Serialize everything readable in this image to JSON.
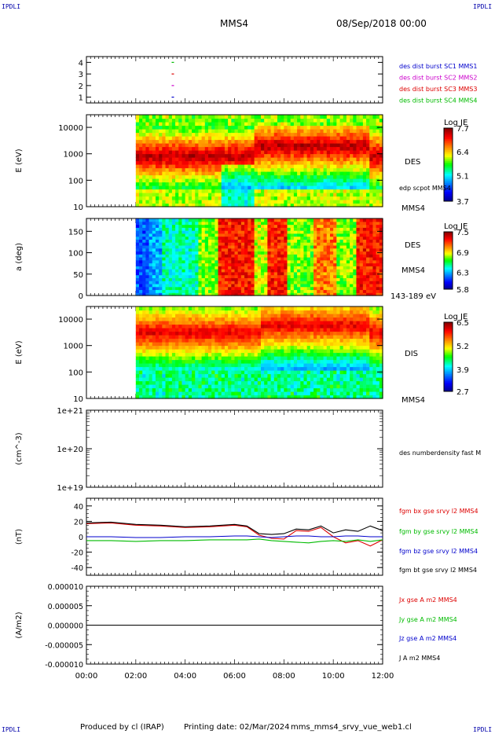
{
  "header": {
    "corner_tl": "IPDLI",
    "corner_tr": "IPDLI",
    "corner_bl": "IPDLI",
    "corner_br": "IPDLI",
    "spacecraft": "MMS4",
    "datetime": "08/Sep/2018 00:00"
  },
  "footer": {
    "produced_by": "Produced by cl (IRAP)",
    "printing_date": "Printing date: 02/Mar/2024",
    "script": "mms_mms4_srvy_vue_web1.cl"
  },
  "colors": {
    "blue": "#0000cc",
    "magenta": "#cc00cc",
    "red": "#dd0000",
    "green": "#00bb00",
    "black": "#000000"
  },
  "time_axis": {
    "ticks": [
      "00:00",
      "02:00",
      "04:00",
      "06:00",
      "08:00",
      "10:00",
      "12:00"
    ],
    "range_hours": [
      0,
      12
    ]
  },
  "chart_data": [
    {
      "type": "scatter",
      "panel": "burst",
      "ylim": [
        0.5,
        4.5
      ],
      "yticks": [
        "1",
        "2",
        "3",
        "4"
      ],
      "series": [
        {
          "name": "des dist burst SC1 MMS1",
          "color": "#0000cc",
          "x_hours": [
            3.5
          ],
          "y": [
            1
          ]
        },
        {
          "name": "des dist burst SC2 MMS2",
          "color": "#cc00cc",
          "x_hours": [
            3.5
          ],
          "y": [
            2
          ]
        },
        {
          "name": "des dist burst SC3 MMS3",
          "color": "#dd0000",
          "x_hours": [
            3.5
          ],
          "y": [
            3
          ]
        },
        {
          "name": "des dist burst SC4 MMS4",
          "color": "#00bb00",
          "x_hours": [
            3.5
          ],
          "y": [
            4
          ]
        }
      ]
    },
    {
      "type": "heatmap",
      "panel": "des_energy",
      "ylabel": "E (eV)",
      "yscale": "log",
      "ylim": [
        10,
        30000
      ],
      "yticks": [
        "10",
        "100",
        "1000",
        "10000"
      ],
      "data_start_hours": 2.0,
      "right_labels": [
        "DES",
        "edp scpot MMS4",
        "MMS4"
      ],
      "colorbar": {
        "title": "Log JE",
        "ticks": [
          "7.7",
          "6.4",
          "5.1",
          "3.7"
        ],
        "range": [
          3.7,
          7.7
        ]
      }
    },
    {
      "type": "heatmap",
      "panel": "des_pitch",
      "ylabel": "a (deg)",
      "ylim": [
        0,
        180
      ],
      "yticks": [
        "0",
        "50",
        "100",
        "150"
      ],
      "data_start_hours": 2.0,
      "right_labels": [
        "DES",
        "MMS4",
        "143-189 eV"
      ],
      "colorbar": {
        "title": "Log JE",
        "ticks": [
          "7.5",
          "6.9",
          "6.3",
          "5.8"
        ],
        "range": [
          5.8,
          7.5
        ]
      }
    },
    {
      "type": "heatmap",
      "panel": "dis_energy",
      "ylabel": "E (eV)",
      "yscale": "log",
      "ylim": [
        10,
        30000
      ],
      "yticks": [
        "10",
        "100",
        "1000",
        "10000"
      ],
      "data_start_hours": 2.0,
      "right_labels": [
        "DIS",
        "MMS4"
      ],
      "colorbar": {
        "title": "Log JE",
        "ticks": [
          "6.5",
          "5.2",
          "3.9",
          "2.7"
        ],
        "range": [
          2.7,
          6.5
        ]
      }
    },
    {
      "type": "line",
      "panel": "density",
      "ylabel": "(cm^-3)",
      "yscale": "log",
      "yticks": [
        "1e+19",
        "1e+20",
        "1e+21"
      ],
      "series": [
        {
          "name": "des numberdensity fast M",
          "color": "#000000",
          "x_hours": [],
          "y": []
        }
      ]
    },
    {
      "type": "line",
      "panel": "fgm",
      "ylabel": "(nT)",
      "ylim": [
        -50,
        50
      ],
      "yticks": [
        "-40",
        "-20",
        "0",
        "20",
        "40"
      ],
      "series": [
        {
          "name": "fgm bx gse srvy l2 MMS4",
          "color": "#dd0000",
          "x_hours": [
            0,
            1,
            2,
            3,
            4,
            5,
            6,
            6.5,
            7,
            7.5,
            8,
            8.5,
            9,
            9.5,
            10,
            10.5,
            11,
            11.5,
            12
          ],
          "y": [
            17,
            18,
            15,
            14,
            12,
            13,
            15,
            13,
            2,
            -2,
            -3,
            8,
            7,
            12,
            0,
            -8,
            -5,
            -12,
            -4
          ]
        },
        {
          "name": "fgm by gse srvy l2 MMS4",
          "color": "#00bb00",
          "x_hours": [
            0,
            1,
            2,
            3,
            4,
            5,
            6,
            6.5,
            7,
            7.5,
            8,
            8.5,
            9,
            9.5,
            10,
            10.5,
            11,
            11.5,
            12
          ],
          "y": [
            -5,
            -5,
            -6,
            -5,
            -5,
            -4,
            -4,
            -4,
            -3,
            -5,
            -6,
            -7,
            -8,
            -6,
            -5,
            -6,
            -4,
            -6,
            -4
          ]
        },
        {
          "name": "fgm bz gse srvy l2 MMS4",
          "color": "#0000cc",
          "x_hours": [
            0,
            1,
            2,
            3,
            4,
            5,
            6,
            6.5,
            7,
            7.5,
            8,
            8.5,
            9,
            9.5,
            10,
            10.5,
            11,
            11.5,
            12
          ],
          "y": [
            0,
            0,
            -1,
            -1,
            0,
            0,
            1,
            1,
            0,
            -1,
            0,
            1,
            1,
            0,
            0,
            1,
            1,
            0,
            0
          ]
        },
        {
          "name": "fgm bt gse srvy l2 MMS4",
          "color": "#000000",
          "x_hours": [
            0,
            1,
            2,
            3,
            4,
            5,
            6,
            6.5,
            7,
            7.5,
            8,
            8.5,
            9,
            9.5,
            10,
            10.5,
            11,
            11.5,
            12
          ],
          "y": [
            18,
            19,
            16,
            15,
            13,
            14,
            16,
            14,
            4,
            3,
            4,
            10,
            9,
            14,
            5,
            9,
            7,
            14,
            8
          ]
        }
      ]
    },
    {
      "type": "line",
      "panel": "current",
      "ylabel": "(A/m2)",
      "ylim": [
        -1e-05,
        1e-05
      ],
      "yticks": [
        "-0.000010",
        "-0.000005",
        "0.000000",
        "0.000005",
        "0.000010"
      ],
      "series": [
        {
          "name": "Jx gse A m2 MMS4",
          "color": "#dd0000",
          "x_hours": [
            0,
            12
          ],
          "y": [
            0,
            0
          ]
        },
        {
          "name": "Jy gse A m2 MMS4",
          "color": "#00bb00",
          "x_hours": [
            0,
            12
          ],
          "y": [
            0,
            0
          ]
        },
        {
          "name": "Jz gse A m2 MMS4",
          "color": "#0000cc",
          "x_hours": [
            0,
            12
          ],
          "y": [
            0,
            0
          ]
        },
        {
          "name": "J A m2 MMS4",
          "color": "#000000",
          "x_hours": [
            0,
            12
          ],
          "y": [
            0,
            0
          ]
        }
      ]
    }
  ]
}
